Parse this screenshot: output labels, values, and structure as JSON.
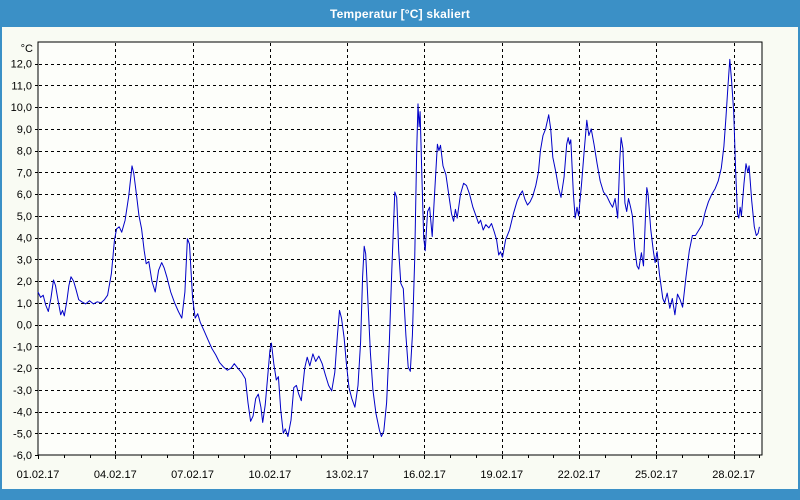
{
  "window": {
    "title": "Temperatur [°C] skaliert"
  },
  "colors": {
    "chrome": "#3b90c6",
    "title_text": "#ffffff",
    "content_bg": "#f9fbf3",
    "plot_bg": "#fdfefa",
    "grid": "#000000",
    "text": "#000000",
    "line": "#0000c8"
  },
  "chart_data": {
    "type": "line",
    "title": "Temperatur [°C] skaliert",
    "unit_label": "°C",
    "grid": "dashed",
    "legend": false,
    "x_axis": {
      "min": 0,
      "max": 28.1,
      "minor_step": 1,
      "ticks": [
        {
          "value": 0,
          "label": "01.02.17"
        },
        {
          "value": 3,
          "label": "04.02.17"
        },
        {
          "value": 6,
          "label": "07.02.17"
        },
        {
          "value": 9,
          "label": "10.02.17"
        },
        {
          "value": 12,
          "label": "13.02.17"
        },
        {
          "value": 15,
          "label": "16.02.17"
        },
        {
          "value": 18,
          "label": "19.02.17"
        },
        {
          "value": 21,
          "label": "22.02.17"
        },
        {
          "value": 24,
          "label": "25.02.17"
        },
        {
          "value": 27,
          "label": "28.02.17"
        }
      ]
    },
    "y_axis": {
      "min": -6,
      "max": 13,
      "ticks": [
        {
          "value": 12,
          "label": "12,0"
        },
        {
          "value": 11,
          "label": "11,0"
        },
        {
          "value": 10,
          "label": "10,0"
        },
        {
          "value": 9,
          "label": "9,0"
        },
        {
          "value": 8,
          "label": "8,0"
        },
        {
          "value": 7,
          "label": "7,0"
        },
        {
          "value": 6,
          "label": "6,0"
        },
        {
          "value": 5,
          "label": "5,0"
        },
        {
          "value": 4,
          "label": "4,0"
        },
        {
          "value": 3,
          "label": "3,0"
        },
        {
          "value": 2,
          "label": "2,0"
        },
        {
          "value": 1,
          "label": "1,0"
        },
        {
          "value": 0,
          "label": "0,0"
        },
        {
          "value": -1,
          "label": "-1,0"
        },
        {
          "value": -2,
          "label": "-2,0"
        },
        {
          "value": -3,
          "label": "-3,0"
        },
        {
          "value": -4,
          "label": "-4,0"
        },
        {
          "value": -5,
          "label": "-5,0"
        },
        {
          "value": -6,
          "label": "-6,0"
        }
      ]
    },
    "series": [
      {
        "name": "Temperatur",
        "x_unit": "days_since_2017-02-01",
        "points": [
          [
            0,
            1.5
          ],
          [
            0.1,
            1.25
          ],
          [
            0.2,
            1.35
          ],
          [
            0.3,
            0.9
          ],
          [
            0.4,
            0.6
          ],
          [
            0.5,
            1.2
          ],
          [
            0.6,
            2.05
          ],
          [
            0.68,
            1.8
          ],
          [
            0.78,
            1.1
          ],
          [
            0.88,
            0.45
          ],
          [
            0.95,
            0.65
          ],
          [
            1.02,
            0.4
          ],
          [
            1.12,
            1.1
          ],
          [
            1.2,
            1.8
          ],
          [
            1.28,
            2.2
          ],
          [
            1.38,
            2.0
          ],
          [
            1.48,
            1.6
          ],
          [
            1.58,
            1.15
          ],
          [
            1.7,
            1.05
          ],
          [
            1.85,
            0.95
          ],
          [
            2.0,
            1.1
          ],
          [
            2.15,
            0.95
          ],
          [
            2.3,
            1.05
          ],
          [
            2.45,
            1.0
          ],
          [
            2.58,
            1.15
          ],
          [
            2.7,
            1.35
          ],
          [
            2.85,
            2.35
          ],
          [
            2.97,
            3.9
          ],
          [
            3.05,
            4.4
          ],
          [
            3.15,
            4.5
          ],
          [
            3.25,
            4.25
          ],
          [
            3.38,
            4.8
          ],
          [
            3.52,
            5.9
          ],
          [
            3.65,
            7.3
          ],
          [
            3.72,
            6.95
          ],
          [
            3.82,
            6.0
          ],
          [
            3.92,
            5.0
          ],
          [
            4.02,
            4.4
          ],
          [
            4.12,
            3.4
          ],
          [
            4.2,
            2.8
          ],
          [
            4.3,
            2.9
          ],
          [
            4.42,
            2.0
          ],
          [
            4.55,
            1.5
          ],
          [
            4.68,
            2.5
          ],
          [
            4.8,
            2.85
          ],
          [
            4.9,
            2.6
          ],
          [
            5.0,
            2.2
          ],
          [
            5.15,
            1.5
          ],
          [
            5.3,
            1.0
          ],
          [
            5.45,
            0.6
          ],
          [
            5.58,
            0.3
          ],
          [
            5.7,
            1.5
          ],
          [
            5.8,
            3.95
          ],
          [
            5.88,
            3.7
          ],
          [
            6.0,
            1.2
          ],
          [
            6.1,
            0.3
          ],
          [
            6.2,
            0.5
          ],
          [
            6.3,
            0.1
          ],
          [
            6.45,
            -0.3
          ],
          [
            6.6,
            -0.7
          ],
          [
            6.75,
            -1.1
          ],
          [
            6.9,
            -1.4
          ],
          [
            7.05,
            -1.75
          ],
          [
            7.2,
            -1.95
          ],
          [
            7.35,
            -2.1
          ],
          [
            7.5,
            -2.0
          ],
          [
            7.62,
            -1.8
          ],
          [
            7.75,
            -2.0
          ],
          [
            7.9,
            -2.2
          ],
          [
            8.05,
            -2.5
          ],
          [
            8.15,
            -3.6
          ],
          [
            8.25,
            -4.45
          ],
          [
            8.35,
            -4.2
          ],
          [
            8.45,
            -3.4
          ],
          [
            8.55,
            -3.2
          ],
          [
            8.65,
            -3.8
          ],
          [
            8.72,
            -4.5
          ],
          [
            8.82,
            -3.7
          ],
          [
            8.9,
            -2.6
          ],
          [
            9.0,
            -1.2
          ],
          [
            9.06,
            -0.85
          ],
          [
            9.15,
            -1.8
          ],
          [
            9.25,
            -2.55
          ],
          [
            9.33,
            -2.4
          ],
          [
            9.42,
            -3.9
          ],
          [
            9.52,
            -5.0
          ],
          [
            9.6,
            -4.8
          ],
          [
            9.7,
            -5.15
          ],
          [
            9.82,
            -4.4
          ],
          [
            9.93,
            -2.9
          ],
          [
            10.03,
            -2.8
          ],
          [
            10.12,
            -3.2
          ],
          [
            10.22,
            -3.5
          ],
          [
            10.35,
            -2.0
          ],
          [
            10.45,
            -1.5
          ],
          [
            10.55,
            -1.9
          ],
          [
            10.67,
            -1.35
          ],
          [
            10.78,
            -1.7
          ],
          [
            10.9,
            -1.45
          ],
          [
            11.03,
            -1.8
          ],
          [
            11.15,
            -2.3
          ],
          [
            11.28,
            -2.8
          ],
          [
            11.4,
            -3.05
          ],
          [
            11.52,
            -2.2
          ],
          [
            11.62,
            -0.5
          ],
          [
            11.7,
            0.65
          ],
          [
            11.78,
            0.3
          ],
          [
            11.88,
            -0.6
          ],
          [
            11.97,
            -1.8
          ],
          [
            12.07,
            -2.9
          ],
          [
            12.18,
            -3.4
          ],
          [
            12.3,
            -3.8
          ],
          [
            12.42,
            -2.8
          ],
          [
            12.52,
            -0.8
          ],
          [
            12.6,
            2.2
          ],
          [
            12.66,
            3.6
          ],
          [
            12.72,
            3.25
          ],
          [
            12.8,
            1.2
          ],
          [
            12.9,
            -1.3
          ],
          [
            13.0,
            -3.0
          ],
          [
            13.12,
            -4.1
          ],
          [
            13.25,
            -4.85
          ],
          [
            13.33,
            -5.15
          ],
          [
            13.42,
            -4.9
          ],
          [
            13.53,
            -3.6
          ],
          [
            13.63,
            -1.0
          ],
          [
            13.73,
            2.5
          ],
          [
            13.85,
            6.1
          ],
          [
            13.92,
            5.85
          ],
          [
            14.0,
            3.4
          ],
          [
            14.08,
            1.9
          ],
          [
            14.18,
            1.65
          ],
          [
            14.28,
            -0.5
          ],
          [
            14.37,
            -1.95
          ],
          [
            14.45,
            -2.15
          ],
          [
            14.53,
            -0.5
          ],
          [
            14.62,
            3.0
          ],
          [
            14.7,
            8.0
          ],
          [
            14.75,
            10.15
          ],
          [
            14.79,
            9.1
          ],
          [
            14.83,
            9.8
          ],
          [
            14.9,
            6.8
          ],
          [
            14.97,
            4.0
          ],
          [
            15.03,
            3.4
          ],
          [
            15.12,
            5.2
          ],
          [
            15.2,
            5.4
          ],
          [
            15.3,
            4.05
          ],
          [
            15.4,
            6.2
          ],
          [
            15.5,
            8.3
          ],
          [
            15.56,
            8.0
          ],
          [
            15.62,
            8.25
          ],
          [
            15.72,
            7.3
          ],
          [
            15.83,
            6.9
          ],
          [
            15.95,
            5.9
          ],
          [
            16.05,
            5.1
          ],
          [
            16.13,
            4.75
          ],
          [
            16.2,
            5.3
          ],
          [
            16.27,
            4.9
          ],
          [
            16.4,
            6.0
          ],
          [
            16.52,
            6.5
          ],
          [
            16.63,
            6.4
          ],
          [
            16.75,
            6.0
          ],
          [
            16.88,
            5.4
          ],
          [
            17.0,
            5.0
          ],
          [
            17.1,
            4.65
          ],
          [
            17.18,
            4.8
          ],
          [
            17.28,
            4.35
          ],
          [
            17.38,
            4.6
          ],
          [
            17.5,
            4.45
          ],
          [
            17.6,
            4.65
          ],
          [
            17.7,
            4.3
          ],
          [
            17.8,
            3.9
          ],
          [
            17.88,
            3.2
          ],
          [
            17.95,
            3.35
          ],
          [
            18.03,
            3.1
          ],
          [
            18.15,
            3.9
          ],
          [
            18.3,
            4.35
          ],
          [
            18.45,
            5.1
          ],
          [
            18.6,
            5.7
          ],
          [
            18.72,
            6.0
          ],
          [
            18.8,
            6.15
          ],
          [
            18.9,
            5.75
          ],
          [
            19.0,
            5.5
          ],
          [
            19.1,
            5.65
          ],
          [
            19.2,
            5.9
          ],
          [
            19.32,
            6.4
          ],
          [
            19.42,
            7.0
          ],
          [
            19.5,
            8.0
          ],
          [
            19.6,
            8.7
          ],
          [
            19.7,
            9.0
          ],
          [
            19.82,
            9.65
          ],
          [
            19.9,
            9.0
          ],
          [
            19.98,
            7.7
          ],
          [
            20.1,
            7.0
          ],
          [
            20.2,
            6.3
          ],
          [
            20.3,
            5.85
          ],
          [
            20.42,
            6.8
          ],
          [
            20.52,
            8.3
          ],
          [
            20.58,
            8.6
          ],
          [
            20.63,
            8.3
          ],
          [
            20.68,
            8.5
          ],
          [
            20.78,
            6.0
          ],
          [
            20.85,
            4.9
          ],
          [
            20.92,
            5.4
          ],
          [
            20.98,
            5.0
          ],
          [
            21.1,
            6.5
          ],
          [
            21.2,
            8.0
          ],
          [
            21.3,
            9.4
          ],
          [
            21.38,
            8.7
          ],
          [
            21.47,
            9.0
          ],
          [
            21.58,
            8.3
          ],
          [
            21.7,
            7.4
          ],
          [
            21.82,
            6.6
          ],
          [
            21.95,
            6.1
          ],
          [
            22.08,
            5.9
          ],
          [
            22.2,
            5.6
          ],
          [
            22.3,
            5.4
          ],
          [
            22.4,
            5.8
          ],
          [
            22.5,
            4.9
          ],
          [
            22.58,
            7.6
          ],
          [
            22.63,
            8.6
          ],
          [
            22.7,
            8.1
          ],
          [
            22.78,
            5.6
          ],
          [
            22.85,
            5.2
          ],
          [
            22.92,
            5.8
          ],
          [
            23.0,
            5.4
          ],
          [
            23.07,
            5.0
          ],
          [
            23.17,
            3.4
          ],
          [
            23.25,
            2.7
          ],
          [
            23.32,
            2.55
          ],
          [
            23.42,
            3.3
          ],
          [
            23.5,
            2.7
          ],
          [
            23.58,
            5.0
          ],
          [
            23.63,
            6.3
          ],
          [
            23.68,
            6.0
          ],
          [
            23.78,
            4.4
          ],
          [
            23.88,
            3.4
          ],
          [
            23.95,
            2.85
          ],
          [
            24.03,
            3.35
          ],
          [
            24.12,
            2.3
          ],
          [
            24.25,
            1.2
          ],
          [
            24.32,
            1.0
          ],
          [
            24.42,
            1.45
          ],
          [
            24.52,
            0.75
          ],
          [
            24.62,
            1.2
          ],
          [
            24.72,
            0.45
          ],
          [
            24.82,
            1.4
          ],
          [
            24.92,
            1.15
          ],
          [
            25.02,
            0.8
          ],
          [
            25.15,
            2.2
          ],
          [
            25.28,
            3.4
          ],
          [
            25.4,
            4.1
          ],
          [
            25.52,
            4.1
          ],
          [
            25.65,
            4.35
          ],
          [
            25.78,
            4.6
          ],
          [
            25.9,
            5.2
          ],
          [
            26.02,
            5.65
          ],
          [
            26.15,
            6.0
          ],
          [
            26.28,
            6.25
          ],
          [
            26.4,
            6.6
          ],
          [
            26.52,
            7.2
          ],
          [
            26.62,
            8.2
          ],
          [
            26.7,
            9.5
          ],
          [
            26.78,
            11.0
          ],
          [
            26.85,
            12.2
          ],
          [
            26.92,
            11.2
          ],
          [
            27.0,
            9.8
          ],
          [
            27.08,
            7.0
          ],
          [
            27.15,
            5.1
          ],
          [
            27.2,
            4.9
          ],
          [
            27.25,
            5.4
          ],
          [
            27.3,
            5.0
          ],
          [
            27.4,
            6.5
          ],
          [
            27.48,
            7.4
          ],
          [
            27.55,
            7.0
          ],
          [
            27.6,
            7.3
          ],
          [
            27.7,
            5.7
          ],
          [
            27.8,
            4.5
          ],
          [
            27.88,
            4.1
          ],
          [
            27.95,
            4.2
          ],
          [
            28.0,
            4.5
          ]
        ]
      }
    ]
  }
}
